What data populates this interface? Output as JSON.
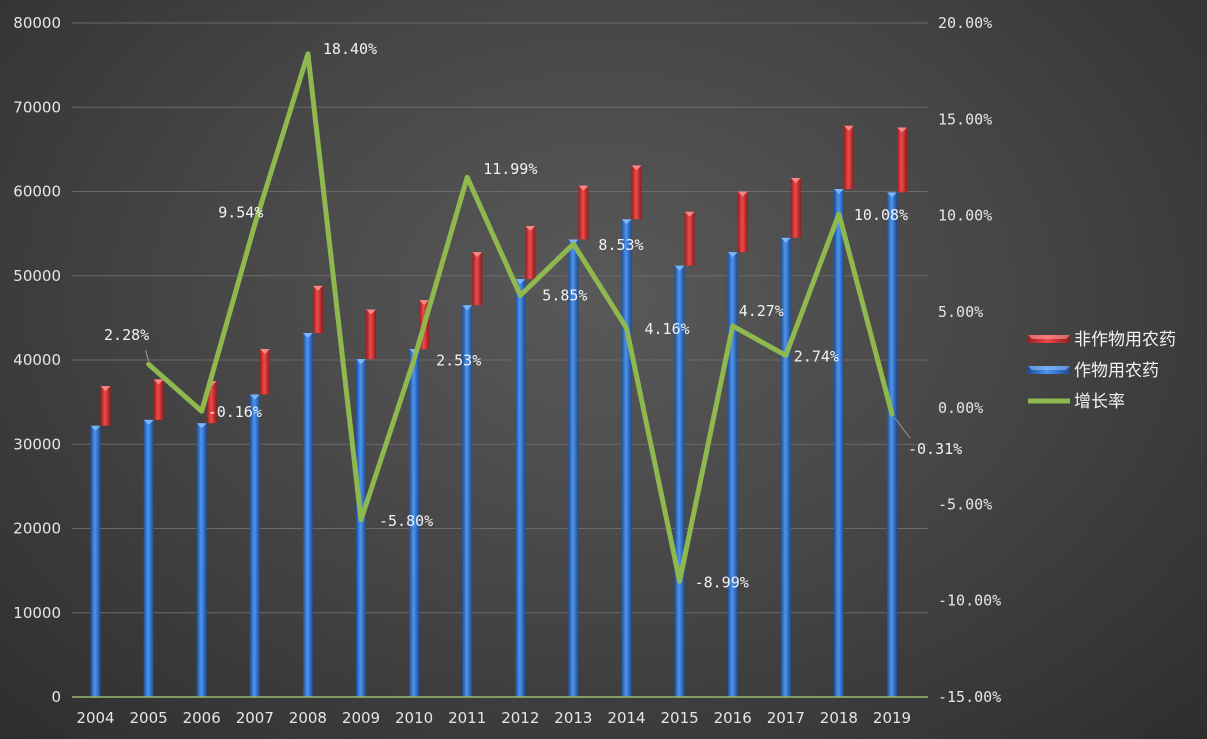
{
  "chart_data": {
    "type": "bar",
    "stacked": true,
    "categories": [
      "2004",
      "2005",
      "2006",
      "2007",
      "2008",
      "2009",
      "2010",
      "2011",
      "2012",
      "2013",
      "2014",
      "2015",
      "2016",
      "2017",
      "2018",
      "2019"
    ],
    "series": [
      {
        "name": "作物用农药",
        "axis": "left",
        "type": "bar",
        "color": "#3b7dd8",
        "values": [
          32200,
          32900,
          32500,
          35900,
          43200,
          40100,
          41300,
          46500,
          49600,
          54300,
          56700,
          51200,
          52800,
          54500,
          60300,
          59900
        ]
      },
      {
        "name": "非作物用农药",
        "axis": "left",
        "type": "bar",
        "color": "#d83535",
        "values": [
          4700,
          4800,
          5000,
          5400,
          5600,
          5900,
          5800,
          6300,
          6300,
          6400,
          6400,
          6400,
          7200,
          7100,
          7500,
          7700
        ]
      },
      {
        "name": "增长率",
        "axis": "right",
        "type": "line",
        "color": "#8fb84f",
        "values": [
          2.28,
          -0.16,
          9.54,
          18.4,
          -5.8,
          2.53,
          11.99,
          5.85,
          8.53,
          4.16,
          -8.99,
          4.27,
          2.74,
          10.08,
          -0.31
        ],
        "x": [
          "2005",
          "2006",
          "2007",
          "2008",
          "2009",
          "2010",
          "2011",
          "2012",
          "2013",
          "2014",
          "2015",
          "2016",
          "2017",
          "2018",
          "2019"
        ],
        "labels": [
          "2.28%",
          "-0.16%",
          "9.54%",
          "18.40%",
          "-5.80%",
          "2.53%",
          "11.99%",
          "5.85%",
          "8.53%",
          "4.16%",
          "-8.99%",
          "4.27%",
          "2.74%",
          "10.08%",
          "-0.31%"
        ]
      }
    ],
    "left_axis": {
      "ylim": [
        0,
        80000
      ],
      "ticks": [
        "0",
        "10000",
        "20000",
        "30000",
        "40000",
        "50000",
        "60000",
        "70000",
        "80000"
      ]
    },
    "right_axis": {
      "ylim": [
        -15,
        20
      ],
      "ticks": [
        "-15.00%",
        "-10.00%",
        "-5.00%",
        "0.00%",
        "5.00%",
        "10.00%",
        "15.00%",
        "20.00%"
      ]
    },
    "grid": true,
    "legend": {
      "position": "right",
      "items": [
        "非作物用农药",
        "作物用农药",
        "增长率"
      ]
    }
  }
}
